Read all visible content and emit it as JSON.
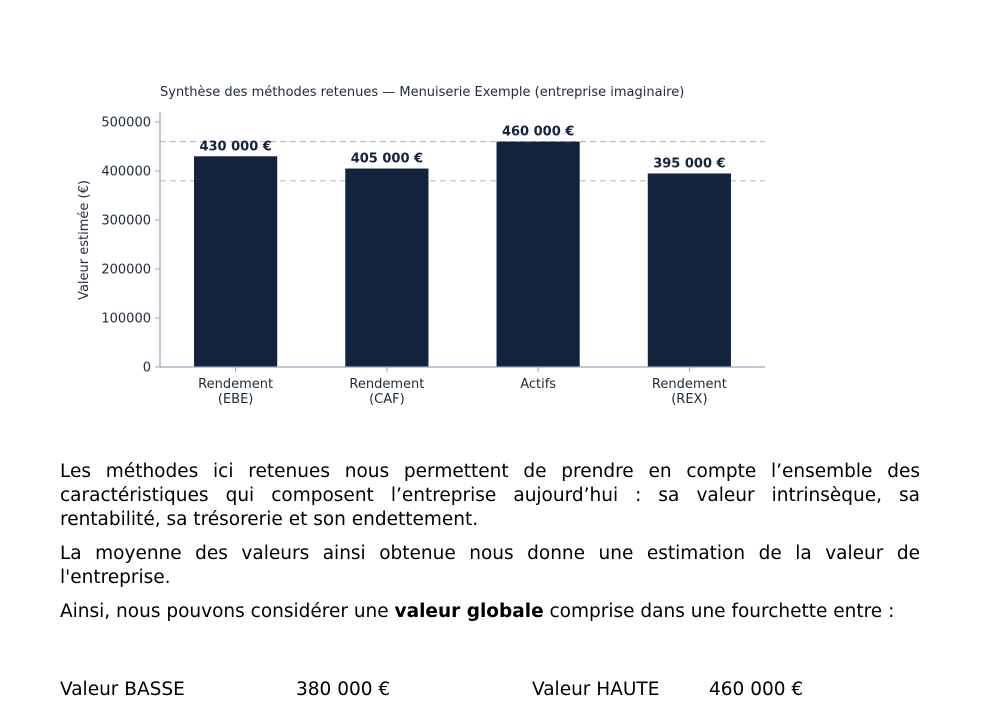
{
  "chart_data": {
    "type": "bar",
    "title": "Synthèse des méthodes retenues — Menuiserie Exemple (entreprise imaginaire)",
    "ylabel": "Valeur estimée (€)",
    "xlabel": "",
    "categories": [
      [
        "Rendement",
        "(EBE)"
      ],
      [
        "Rendement",
        "(CAF)"
      ],
      [
        "Actifs"
      ],
      [
        "Rendement",
        "(REX)"
      ]
    ],
    "values": [
      430000,
      405000,
      460000,
      395000
    ],
    "value_labels": [
      "430 000 €",
      "405 000 €",
      "460 000 €",
      "395 000 €"
    ],
    "yticks": [
      0,
      100000,
      200000,
      300000,
      400000,
      500000
    ],
    "ytick_labels": [
      "0",
      "100000",
      "200000",
      "300000",
      "400000",
      "500000"
    ],
    "ylim": [
      0,
      500000
    ],
    "reference_lines": [
      380000,
      460000
    ],
    "grid": false,
    "colors": {
      "bar": "#13233d",
      "reference_line": "#b8bfcc",
      "axis": "#9aa8bd"
    }
  },
  "text": {
    "paragraph1": "Les méthodes ici retenues nous permettent de prendre en compte l’ensemble des caractéristiques qui composent l’entreprise aujourd’hui : sa valeur intrinsèque, sa rentabilité, sa trésorerie et son endettement.",
    "paragraph2": "La moyenne des valeurs ainsi obtenue nous donne une estimation de la valeur de l'entreprise.",
    "paragraph3_before": "Ainsi, nous pouvons considérer une ",
    "paragraph3_bold": "valeur globale",
    "paragraph3_after": " comprise dans une fourchette entre :"
  },
  "range": {
    "low_label": "Valeur BASSE",
    "low_value": "380 000 €",
    "high_label": "Valeur HAUTE",
    "high_value": "460 000 €"
  }
}
